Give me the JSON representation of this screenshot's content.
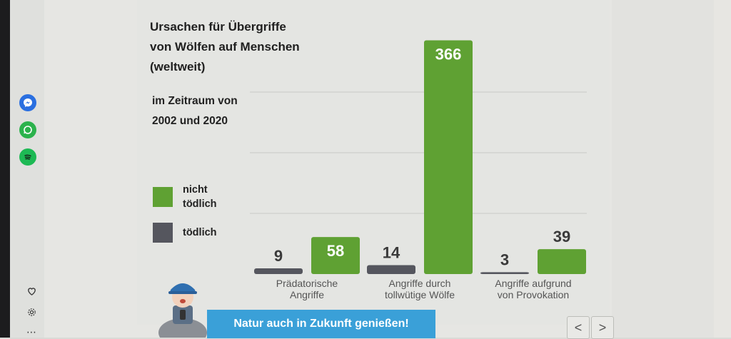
{
  "chart_data": {
    "type": "bar",
    "title": "Ursachen für Übergriffe von Wölfen auf Menschen (weltweit)",
    "subtitle": "im Zeitraum von 2002 und 2020",
    "categories": [
      "Prädatorische Angriffe",
      "Angriffe durch tollwütige Wölfe",
      "Angriffe aufgrund von Provokation"
    ],
    "series": [
      {
        "name": "tödlich",
        "values": [
          9,
          14,
          3
        ],
        "color": "#55565e"
      },
      {
        "name": "nicht tödlich",
        "values": [
          58,
          366,
          39
        ],
        "color": "#5fa133"
      }
    ],
    "ylim": [
      0,
      380
    ],
    "grid": true,
    "legend": [
      {
        "label": "nicht tödlich",
        "color": "#5fa133"
      },
      {
        "label": "tödlich",
        "color": "#55565e"
      }
    ]
  },
  "title_lines": [
    "Ursachen für Übergriffe",
    "von Wölfen auf Menschen",
    "(weltweit)"
  ],
  "subtitle_lines": [
    "im Zeitraum von",
    "2002 und 2020"
  ],
  "banner": {
    "text": "Natur auch in Zukunft genießen!"
  },
  "nav": {
    "prev": "<",
    "next": ">"
  },
  "sidebar": {
    "apps": [
      {
        "name": "messenger-icon",
        "color": "#2a6fe0"
      },
      {
        "name": "whatsapp-icon",
        "color": "#2bb24c"
      },
      {
        "name": "spotify-icon",
        "color": "#1db954"
      }
    ]
  }
}
